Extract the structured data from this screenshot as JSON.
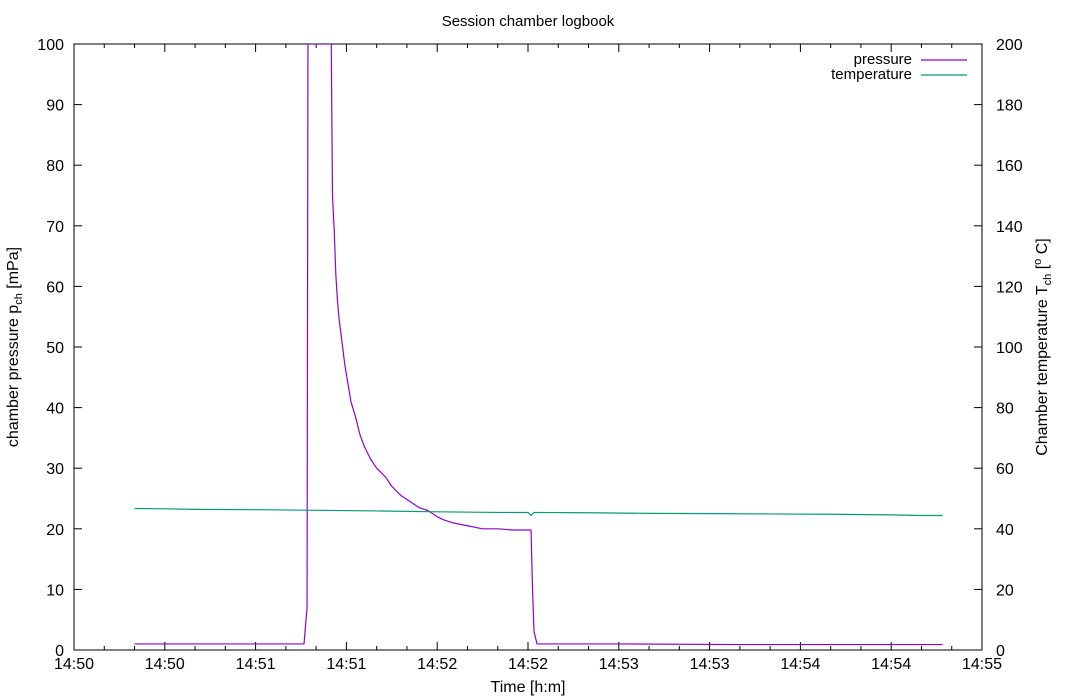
{
  "chart_data": {
    "type": "line",
    "title": "Session chamber logbook",
    "xlabel": "Time [h:m]",
    "ylabel": {
      "main": "chamber pressure p",
      "sub": "ch",
      "unit": " [mPa]"
    },
    "y2label": {
      "main": "Chamber temperature T",
      "sub": "ch",
      "unit": " [",
      "degree": "o",
      "tail": " C]"
    },
    "x_range_seconds": [
      0,
      300
    ],
    "ylim": [
      0,
      100
    ],
    "y2lim": [
      0,
      200
    ],
    "x_ticks": [
      {
        "t": 0,
        "label": "14:50"
      },
      {
        "t": 30,
        "label": "14:50"
      },
      {
        "t": 60,
        "label": "14:51"
      },
      {
        "t": 90,
        "label": "14:51"
      },
      {
        "t": 120,
        "label": "14:52"
      },
      {
        "t": 150,
        "label": "14:52"
      },
      {
        "t": 180,
        "label": "14:53"
      },
      {
        "t": 210,
        "label": "14:53"
      },
      {
        "t": 240,
        "label": "14:54"
      },
      {
        "t": 270,
        "label": "14:54"
      },
      {
        "t": 300,
        "label": "14:55"
      }
    ],
    "y_ticks": [
      0,
      10,
      20,
      30,
      40,
      50,
      60,
      70,
      80,
      90,
      100
    ],
    "y2_ticks": [
      0,
      20,
      40,
      60,
      80,
      100,
      120,
      140,
      160,
      180,
      200
    ],
    "grid": false,
    "legend_position": "top-right",
    "series": [
      {
        "name": "pressure",
        "axis": "y",
        "color": "#9400d3",
        "points": [
          [
            20,
            1.0
          ],
          [
            40,
            1.0
          ],
          [
            60,
            1.0
          ],
          [
            76.0,
            1.0
          ],
          [
            77.0,
            7.0
          ],
          [
            77.3,
            100
          ],
          [
            85.0,
            100
          ],
          [
            85.4,
            75
          ],
          [
            86.0,
            69
          ],
          [
            86.5,
            62
          ],
          [
            87.0,
            58
          ],
          [
            87.5,
            55
          ],
          [
            88.5,
            51
          ],
          [
            89.5,
            47
          ],
          [
            90.5,
            44
          ],
          [
            91.5,
            41
          ],
          [
            93.0,
            38.5
          ],
          [
            94.5,
            35.5
          ],
          [
            96.0,
            33.5
          ],
          [
            98.0,
            31.5
          ],
          [
            100.0,
            30.0
          ],
          [
            103.0,
            28.5
          ],
          [
            105.0,
            27.0
          ],
          [
            108.0,
            25.5
          ],
          [
            111.0,
            24.5
          ],
          [
            114.0,
            23.5
          ],
          [
            117.0,
            23.0
          ],
          [
            120.0,
            22.0
          ],
          [
            122.0,
            21.5
          ],
          [
            125.0,
            21.0
          ],
          [
            130.0,
            20.5
          ],
          [
            135.0,
            20.0
          ],
          [
            140.0,
            20.0
          ],
          [
            145.0,
            19.8
          ],
          [
            151.0,
            19.8
          ],
          [
            151.5,
            10.0
          ],
          [
            152.0,
            3.0
          ],
          [
            153.0,
            1.0
          ],
          [
            180,
            1.0
          ],
          [
            220,
            0.9
          ],
          [
            260,
            0.9
          ],
          [
            287,
            0.9
          ]
        ]
      },
      {
        "name": "temperature",
        "axis": "y2",
        "color": "#009e73",
        "points": [
          [
            20,
            46.7
          ],
          [
            30,
            46.6
          ],
          [
            40,
            46.4
          ],
          [
            60,
            46.3
          ],
          [
            80,
            46.1
          ],
          [
            100,
            45.9
          ],
          [
            120,
            45.6
          ],
          [
            140,
            45.4
          ],
          [
            150,
            45.4
          ],
          [
            151,
            44.4
          ],
          [
            152,
            45.4
          ],
          [
            170,
            45.3
          ],
          [
            190,
            45.1
          ],
          [
            210,
            45.0
          ],
          [
            230,
            44.9
          ],
          [
            250,
            44.8
          ],
          [
            270,
            44.6
          ],
          [
            280,
            44.4
          ],
          [
            287,
            44.4
          ]
        ]
      }
    ]
  }
}
